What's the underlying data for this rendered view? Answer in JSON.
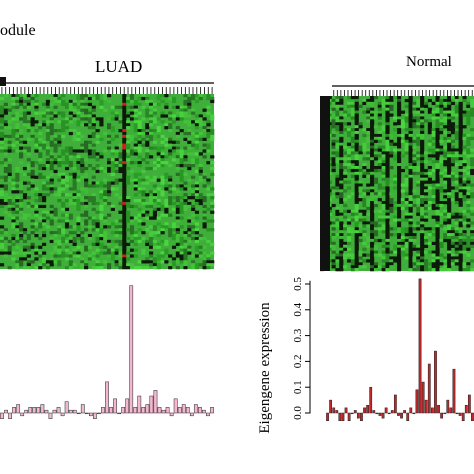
{
  "header": {
    "module_text": "odule"
  },
  "colors": {
    "heat_green": "#3fae3a",
    "heat_dark": "#0d1a0a",
    "heat_red": "#d41e1e",
    "bar_luad": "#f2b8d0",
    "bar_normal": "#c0282a",
    "axis": "#000000"
  },
  "chart_data": [
    {
      "type": "heatmap",
      "title": "LUAD",
      "highlight_column_index": 32,
      "columns": 56,
      "rows": 60
    },
    {
      "type": "heatmap",
      "title": "Normal",
      "columns": 40,
      "rows": 60
    },
    {
      "type": "bar",
      "series": [
        {
          "values": [
            -0.02,
            0.01,
            -0.02,
            0.02,
            0.03,
            -0.01,
            0.01,
            0.02,
            0.02,
            0.02,
            0.03,
            0.01,
            -0.02,
            0.01,
            0.02,
            -0.01,
            0.04,
            0.01,
            0.01,
            0.0,
            0.03,
            0.0,
            -0.01,
            -0.02,
            0.0,
            0.02,
            0.11,
            0.02,
            0.05,
            0.0,
            0.02,
            0.05,
            0.45,
            0.02,
            0.06,
            0.02,
            0.03,
            0.06,
            0.08,
            0.02,
            0.01,
            0.02,
            -0.01,
            0.05,
            0.02,
            0.03,
            0.02,
            -0.01,
            0.03,
            0.02,
            0.01,
            -0.01,
            0.02
          ]
        }
      ]
    },
    {
      "type": "bar",
      "ylabel": "Eigengene expression",
      "y_ticks": [
        "0.5",
        "0.4",
        "0.3",
        "0.2",
        "0.1",
        "0.0"
      ],
      "ylim": [
        -0.05,
        0.52
      ],
      "series": [
        {
          "values": [
            -0.03,
            0.05,
            0.02,
            0.01,
            -0.03,
            -0.03,
            0.02,
            -0.03,
            0.0,
            0.01,
            -0.02,
            -0.03,
            0.02,
            0.03,
            0.1,
            0.01,
            0.0,
            -0.01,
            -0.02,
            0.02,
            0.0,
            0.01,
            0.07,
            -0.01,
            -0.02,
            0.01,
            -0.03,
            0.02,
            0.0,
            0.09,
            0.52,
            0.12,
            0.05,
            0.19,
            0.02,
            0.24,
            0.03,
            -0.02,
            0.0,
            0.05,
            0.02,
            0.17,
            0.0,
            -0.01,
            -0.03,
            0.03,
            0.07,
            -0.03
          ]
        }
      ]
    }
  ]
}
